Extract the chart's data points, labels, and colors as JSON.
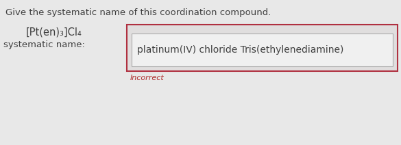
{
  "background_color": "#e8e8e8",
  "question_text": "Give the systematic name of this coordination compound.",
  "formula_main": "[Pt(en)",
  "formula_sub1": "3",
  "formula_mid": "]Cl",
  "formula_sub2": "4",
  "label_text": "systematic name:",
  "answer_text": "platinum(IV) chloride Tris(ethylenediamine)",
  "incorrect_text": "Incorrect",
  "question_fontsize": 9.5,
  "formula_fontsize": 10.5,
  "formula_sub_fontsize": 7.5,
  "label_fontsize": 9.5,
  "answer_fontsize": 10,
  "incorrect_fontsize": 8,
  "incorrect_color": "#b03030",
  "outer_box_color": "#b03040",
  "inner_box_color": "#aaaaaa",
  "inner_box_bg": "#f0f0f0",
  "text_color": "#404040"
}
